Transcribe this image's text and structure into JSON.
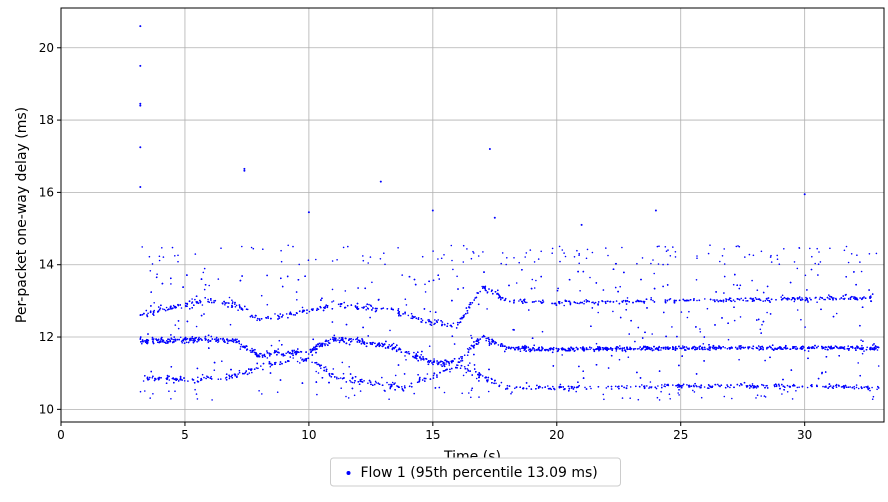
{
  "chart_data": {
    "type": "scatter",
    "title": "",
    "xlabel": "Time (s)",
    "ylabel": "Per-packet one-way delay (ms)",
    "xlim": [
      0,
      33.2
    ],
    "ylim": [
      9.65,
      21.1
    ],
    "xticks": [
      0,
      5,
      10,
      15,
      20,
      25,
      30
    ],
    "yticks": [
      10,
      12,
      14,
      16,
      18,
      20
    ],
    "grid": true,
    "legend_position": "bottom-center",
    "series": [
      {
        "name": "Flow 1 (95th percentile 13.09 ms)",
        "color": "#0000ff",
        "x_range": [
          3.2,
          33.0
        ],
        "bands": [
          {
            "description": "upper band",
            "points": [
              [
                3.2,
                12.6
              ],
              [
                5,
                12.9
              ],
              [
                6,
                13.0
              ],
              [
                7,
                12.9
              ],
              [
                8,
                12.5
              ],
              [
                9,
                12.6
              ],
              [
                10,
                12.7
              ],
              [
                11,
                12.9
              ],
              [
                13,
                12.8
              ],
              [
                15,
                12.4
              ],
              [
                16,
                12.3
              ],
              [
                17,
                13.4
              ],
              [
                18,
                13.0
              ],
              [
                20,
                12.95
              ],
              [
                25,
                13.0
              ],
              [
                30,
                13.05
              ],
              [
                33,
                13.1
              ]
            ]
          },
          {
            "description": "middle band",
            "points": [
              [
                3.2,
                11.9
              ],
              [
                5,
                11.9
              ],
              [
                6,
                11.95
              ],
              [
                7,
                11.9
              ],
              [
                8,
                11.5
              ],
              [
                9,
                11.55
              ],
              [
                10,
                11.6
              ],
              [
                11,
                11.95
              ],
              [
                13,
                11.8
              ],
              [
                15,
                11.3
              ],
              [
                16,
                11.3
              ],
              [
                17,
                12.0
              ],
              [
                18,
                11.7
              ],
              [
                20,
                11.65
              ],
              [
                25,
                11.7
              ],
              [
                30,
                11.7
              ],
              [
                33,
                11.7
              ]
            ]
          },
          {
            "description": "lower band",
            "points": [
              [
                3.2,
                10.9
              ],
              [
                5,
                10.8
              ],
              [
                6,
                10.85
              ],
              [
                7,
                10.9
              ],
              [
                8,
                11.2
              ],
              [
                10,
                11.4
              ],
              [
                11,
                10.9
              ],
              [
                12,
                10.8
              ],
              [
                13.8,
                10.6
              ],
              [
                16,
                11.2
              ],
              [
                17,
                10.9
              ],
              [
                18,
                10.6
              ],
              [
                20,
                10.6
              ],
              [
                25,
                10.65
              ],
              [
                30,
                10.65
              ],
              [
                33,
                10.6
              ]
            ]
          }
        ],
        "outliers": [
          [
            3.2,
            20.6
          ],
          [
            3.2,
            19.5
          ],
          [
            3.2,
            18.45
          ],
          [
            3.2,
            18.4
          ],
          [
            3.2,
            17.25
          ],
          [
            3.2,
            16.15
          ],
          [
            7.4,
            16.65
          ],
          [
            7.4,
            16.6
          ],
          [
            12.9,
            16.3
          ],
          [
            10,
            15.45
          ],
          [
            17.3,
            17.2
          ],
          [
            15,
            15.5
          ],
          [
            24,
            15.5
          ],
          [
            30,
            15.95
          ],
          [
            21,
            15.1
          ],
          [
            17.5,
            15.3
          ]
        ]
      }
    ]
  }
}
